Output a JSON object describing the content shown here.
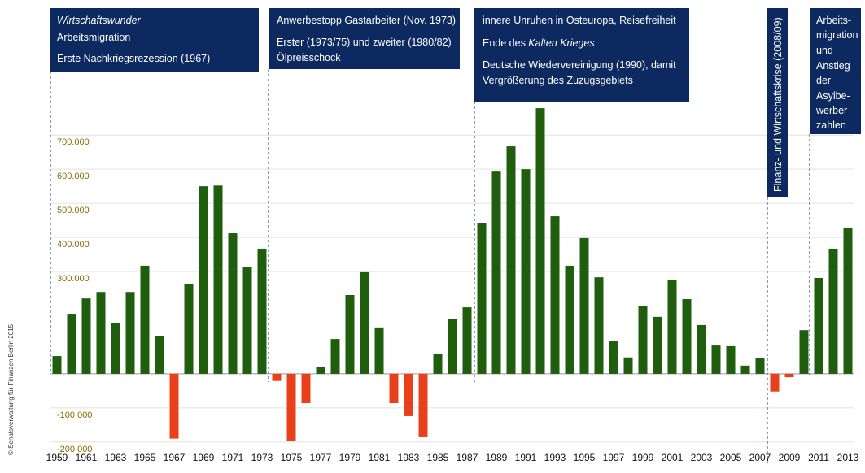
{
  "chart_data": {
    "type": "bar",
    "categories": [
      1959,
      null,
      1961,
      null,
      1963,
      null,
      1965,
      null,
      1967,
      null,
      1969,
      null,
      1971,
      null,
      1973,
      null,
      1975,
      null,
      1977,
      null,
      1979,
      null,
      1981,
      null,
      1983,
      null,
      1985,
      null,
      1987,
      null,
      1989,
      null,
      1991,
      null,
      1993,
      null,
      1995,
      null,
      1997,
      null,
      1999,
      null,
      2001,
      null,
      2003,
      null,
      2005,
      null,
      2007,
      null,
      2009,
      null,
      2011,
      null,
      2013
    ],
    "values": [
      52000,
      176000,
      221000,
      240000,
      150000,
      240000,
      317000,
      110000,
      -190000,
      262000,
      550000,
      552000,
      412000,
      314000,
      367000,
      -21000,
      -198000,
      -86000,
      21000,
      102000,
      231000,
      298000,
      136000,
      -86000,
      -124000,
      -186000,
      57000,
      160000,
      195000,
      443000,
      593000,
      667000,
      600000,
      779000,
      462000,
      317000,
      398000,
      283000,
      95000,
      48000,
      200000,
      167000,
      274000,
      219000,
      143000,
      83000,
      81000,
      24000,
      45000,
      -52000,
      -10000,
      128000,
      281000,
      367000,
      429000
    ],
    "color": "#1e5e0c",
    "negative_color": "#e8401a",
    "ylim": [
      -210000,
      1070000
    ],
    "yticks": [
      {
        "value": -200000,
        "label": "-200.000"
      },
      {
        "value": -100000,
        "label": "-100.000"
      },
      {
        "value": 300000,
        "label": "300.000"
      },
      {
        "value": 400000,
        "label": "400.000"
      },
      {
        "value": 500000,
        "label": "500.000"
      },
      {
        "value": 600000,
        "label": "600.000"
      },
      {
        "value": 700000,
        "label": "700.000"
      }
    ],
    "grid": true,
    "annotations": [
      {
        "lines": [
          "Wirtschaftswunder",
          "Arbeitsmigration",
          "Erste Nachkriegsrezession (1967)"
        ]
      },
      {
        "lines": [
          "Anwerbestopp Gastarbeiter (Nov. 1973)",
          "Erster (1973/75) und zweiter (1980/82)",
          "Ölpreisschock"
        ]
      },
      {
        "lines": [
          "innere Unruhen in Osteuropa, Reisefreiheit",
          "Ende des ",
          "Kalten Krieges",
          "Deutsche Wiedervereinigung (1990), damit",
          "Vergrößerung des Zuzugsgebiets"
        ]
      },
      {
        "lines": [
          "Finanz- und Wirtschaftskrise (2008/09)"
        ]
      },
      {
        "lines": [
          "Arbeits-",
          "migration",
          "und",
          "Anstieg",
          "der",
          "Asylbe-",
          "werber-",
          "zahlen"
        ]
      }
    ],
    "credit": "© Senatsverwaltung für Finanzen Berlin 2015"
  }
}
